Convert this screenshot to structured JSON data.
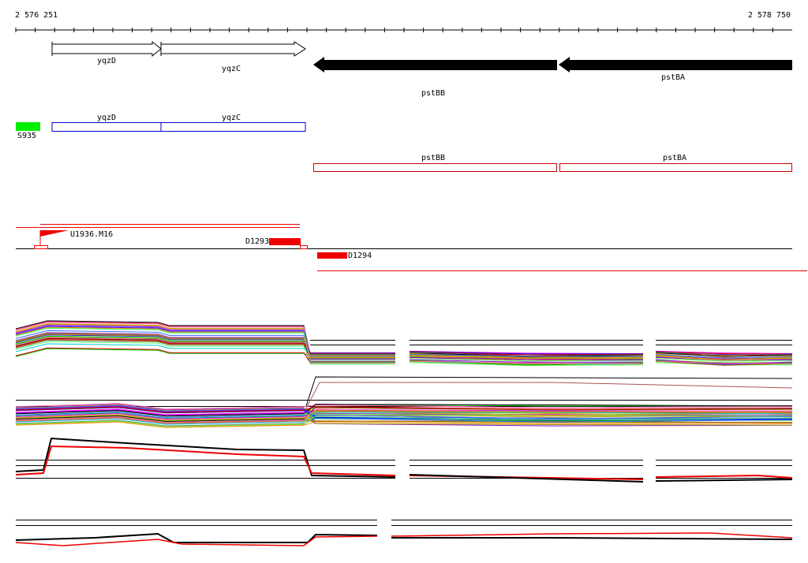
{
  "ruler": {
    "start": "2 576 251",
    "end": "2 578 750"
  },
  "genes": [
    {
      "label": "yqzD"
    },
    {
      "label": "yqzC"
    },
    {
      "label": "pstBB"
    },
    {
      "label": "pstBA"
    }
  ],
  "spot": {
    "label": "S935"
  },
  "cds": [
    {
      "label": "yqzD"
    },
    {
      "label": "yqzC"
    }
  ],
  "operons": [
    {
      "label": "pstBB"
    },
    {
      "label": "pstBA"
    }
  ],
  "features": [
    {
      "label": "U1936.M16"
    },
    {
      "label": "D1293"
    },
    {
      "label": "D1294"
    }
  ]
}
